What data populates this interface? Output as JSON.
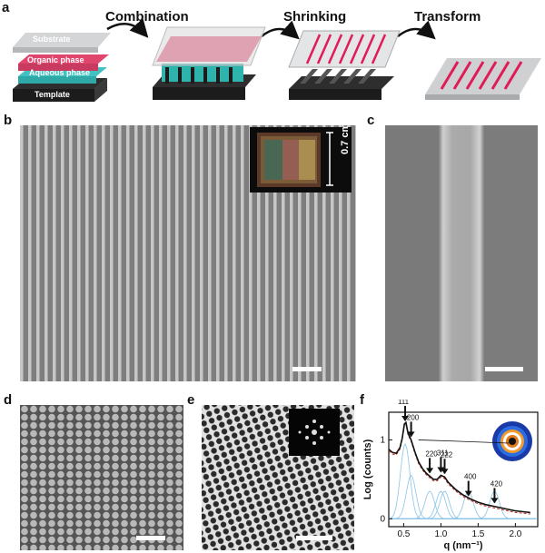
{
  "panel_labels": {
    "a": "a",
    "b": "b",
    "c": "c",
    "d": "d",
    "e": "e",
    "f": "f"
  },
  "panel_a": {
    "steps": [
      "Combination",
      "Shrinking",
      "Transform"
    ],
    "layers": [
      "Substrate",
      "Organic phase",
      "Aqueous phase",
      "Template"
    ],
    "colors": {
      "organic": "#e0456e",
      "aqueous": "#3fc2c0",
      "template": "#2e2e2e",
      "substrate": "#c9cacc",
      "stripe": "#e01c58"
    }
  },
  "panel_b": {
    "inset_scale": "0.7 cm"
  },
  "chart_data": {
    "type": "line",
    "xlabel": "q (nm⁻¹)",
    "ylabel": "Log (counts)",
    "xlim": [
      0.3,
      2.3
    ],
    "ylim": [
      -0.1,
      1.35
    ],
    "xticks": [
      "0.5",
      "1.0",
      "1.5",
      "2.0"
    ],
    "yticks": [
      "0",
      "1"
    ],
    "peaks": [
      {
        "label": "111",
        "q": 0.52
      },
      {
        "label": "200",
        "q": 0.6
      },
      {
        "label": "220",
        "q": 0.85
      },
      {
        "label": "311",
        "q": 1.0
      },
      {
        "label": "222",
        "q": 1.05
      },
      {
        "label": "400",
        "q": 1.37
      },
      {
        "label": "420",
        "q": 1.72
      }
    ],
    "series": [
      {
        "values": [
          [
            0.3,
            0.88
          ],
          [
            0.35,
            0.84
          ],
          [
            0.4,
            0.83
          ],
          [
            0.45,
            0.9
          ],
          [
            0.48,
            1.02
          ],
          [
            0.51,
            1.2
          ],
          [
            0.53,
            1.22
          ],
          [
            0.56,
            1.08
          ],
          [
            0.6,
            1.0
          ],
          [
            0.65,
            0.85
          ],
          [
            0.7,
            0.72
          ],
          [
            0.75,
            0.64
          ],
          [
            0.8,
            0.58
          ],
          [
            0.85,
            0.54
          ],
          [
            0.9,
            0.5
          ],
          [
            0.95,
            0.5
          ],
          [
            1.0,
            0.55
          ],
          [
            1.05,
            0.53
          ],
          [
            1.1,
            0.46
          ],
          [
            1.2,
            0.37
          ],
          [
            1.3,
            0.3
          ],
          [
            1.4,
            0.25
          ],
          [
            1.5,
            0.21
          ],
          [
            1.6,
            0.18
          ],
          [
            1.7,
            0.16
          ],
          [
            1.8,
            0.14
          ],
          [
            1.9,
            0.12
          ],
          [
            2.0,
            0.1
          ],
          [
            2.1,
            0.09
          ],
          [
            2.2,
            0.08
          ]
        ]
      }
    ]
  }
}
